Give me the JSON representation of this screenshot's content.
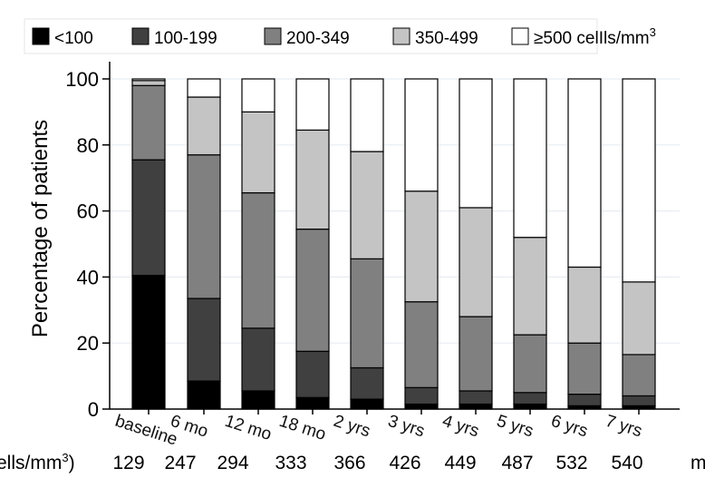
{
  "chart_data": {
    "type": "bar",
    "stacked": true,
    "percent": true,
    "ylabel": "Percentage of patients",
    "ylim": [
      0,
      100
    ],
    "yticks": [
      0,
      20,
      40,
      60,
      80,
      100
    ],
    "grid": true,
    "legend_position": "top",
    "categories": [
      "baseline",
      "6 mo",
      "12 mo",
      "18 mo",
      "2 yrs",
      "3 yrs",
      "4 yrs",
      "5 yrs",
      "6 yrs",
      "7 yrs"
    ],
    "series": [
      {
        "name": "<100",
        "color": "#000000",
        "values": [
          40.5,
          8.5,
          5.5,
          3.5,
          3,
          1.5,
          1.5,
          1.5,
          1,
          1
        ]
      },
      {
        "name": "100-199",
        "color": "#404040",
        "values": [
          35,
          25,
          19,
          14,
          9.5,
          5,
          4,
          3.5,
          3.5,
          3
        ]
      },
      {
        "name": "200-349",
        "color": "#808080",
        "values": [
          22.5,
          43.5,
          41,
          37,
          33,
          26,
          22.5,
          17.5,
          15.5,
          12.5
        ]
      },
      {
        "name": "350-499",
        "color": "#c4c4c4",
        "values": [
          1.5,
          17.5,
          24.5,
          30,
          32.5,
          33.5,
          33,
          29.5,
          23,
          22
        ]
      },
      {
        "name": "≥500 celIls/mm",
        "color": "#ffffff",
        "values": [
          0.5,
          5.5,
          10,
          15.5,
          22,
          34,
          39,
          48,
          57,
          61.5
        ]
      }
    ],
    "legend_superscript": "3",
    "median_row": {
      "label": "ells/mm",
      "label_superscript": "3",
      "label_suffix": ")",
      "values": [
        "129",
        "247",
        "294",
        "333",
        "366",
        "426",
        "449",
        "487",
        "532",
        "540"
      ],
      "right_cut_text": "m"
    }
  }
}
